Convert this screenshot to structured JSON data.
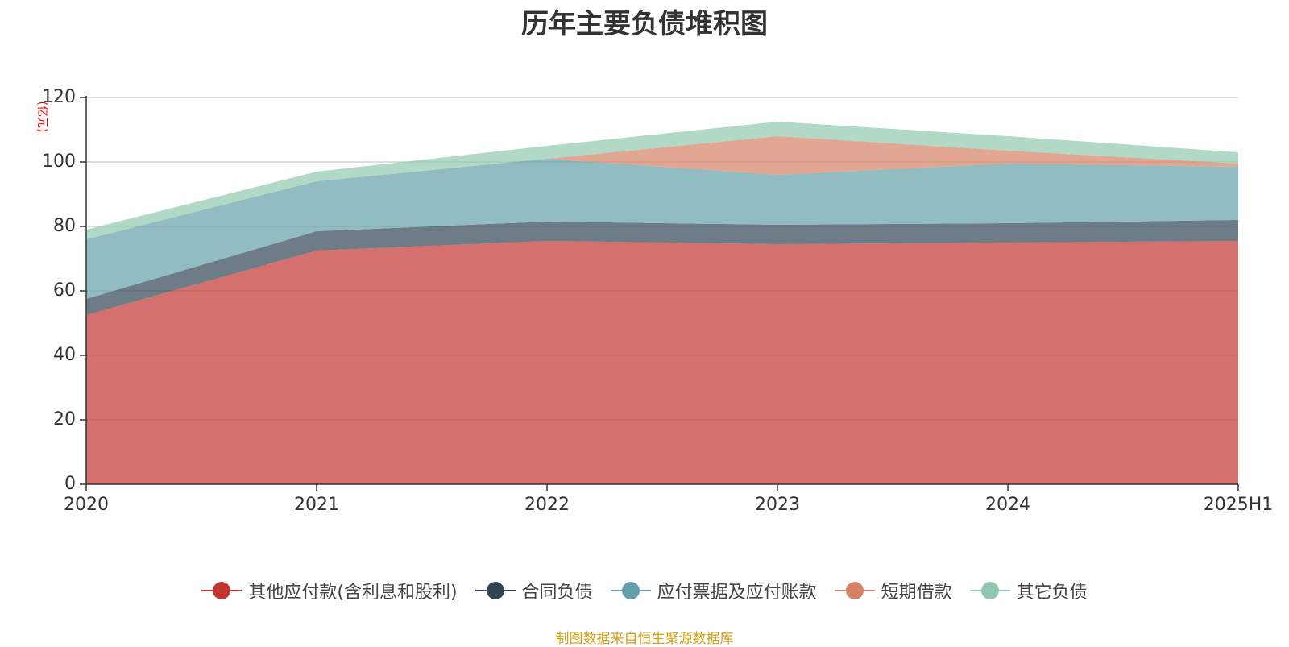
{
  "chart_data": {
    "type": "area",
    "stacked": true,
    "title": "历年主要负债堆积图",
    "unit_label": "(亿元)",
    "categories": [
      "2020",
      "2021",
      "2022",
      "2023",
      "2024",
      "2025H1"
    ],
    "ylim": [
      0,
      120
    ],
    "yticks": [
      0,
      20,
      40,
      60,
      80,
      100,
      120
    ],
    "grid": true,
    "legend_position": "bottom",
    "series": [
      {
        "name": "其他应付款(含利息和股利)",
        "color": "#c23531",
        "values": [
          52.5,
          72.5,
          75.5,
          74.5,
          75,
          75.5
        ]
      },
      {
        "name": "合同负债",
        "color": "#2f4554",
        "values": [
          5,
          6,
          6,
          6,
          6,
          6.5
        ]
      },
      {
        "name": "应付票据及应付账款",
        "color": "#61a0a8",
        "values": [
          18.5,
          15.5,
          19.5,
          15.5,
          18.5,
          16.5
        ]
      },
      {
        "name": "短期借款",
        "color": "#d48265",
        "values": [
          0,
          0,
          0,
          12,
          4,
          1
        ]
      },
      {
        "name": "其它负债",
        "color": "#91c7ae",
        "values": [
          3,
          3,
          4,
          4.5,
          4.5,
          3.5
        ]
      }
    ]
  },
  "source_note": "制图数据来自恒生聚源数据库"
}
